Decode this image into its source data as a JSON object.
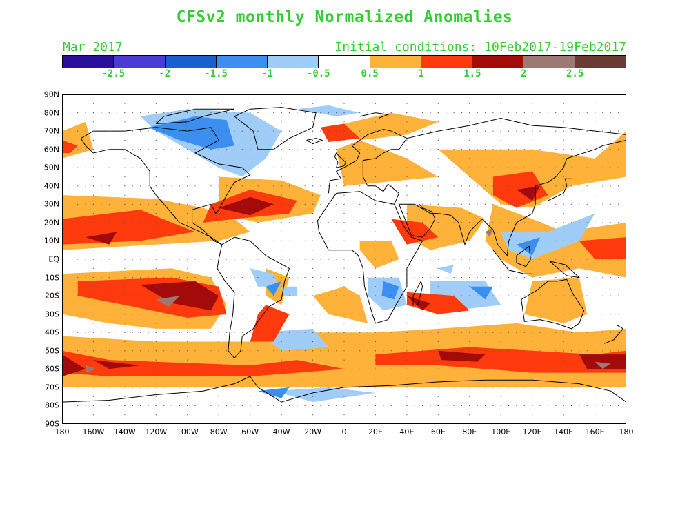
{
  "title": "CFSv2 monthly Normalized Anomalies",
  "month_label": "Mar 2017",
  "initial_conditions": "Initial conditions: 10Feb2017-19Feb2017",
  "colorbar": {
    "colors": [
      "#2a0f9c",
      "#4a3ad6",
      "#1a5fd0",
      "#3c8ef0",
      "#a0cdf8",
      "#ffffff",
      "#ffb23a",
      "#ff3b0e",
      "#a30a0a",
      "#9c7a73",
      "#6a3b33"
    ],
    "labels": [
      "-2.5",
      "-2",
      "-1.5",
      "-1",
      "-0.5",
      "0.5",
      "1",
      "1.5",
      "2",
      "2.5"
    ]
  },
  "map": {
    "lat_labels": [
      "90N",
      "80N",
      "70N",
      "60N",
      "50N",
      "40N",
      "30N",
      "20N",
      "10N",
      "EQ",
      "10S",
      "20S",
      "30S",
      "40S",
      "50S",
      "60S",
      "70S",
      "80S",
      "90S"
    ],
    "lon_labels": [
      "180",
      "160W",
      "140W",
      "120W",
      "100W",
      "80W",
      "60W",
      "40W",
      "20W",
      "0",
      "20E",
      "40E",
      "60E",
      "80E",
      "100E",
      "120E",
      "140E",
      "160E",
      "180"
    ],
    "colors": {
      "weak_pos": "#ffb23a",
      "mid_pos": "#ff3b0e",
      "strong_pos": "#a30a0a",
      "extreme_pos": "#9c7a73",
      "weak_neg": "#a0cdf8",
      "mid_neg": "#3c8ef0",
      "coast": "#000000"
    }
  }
}
